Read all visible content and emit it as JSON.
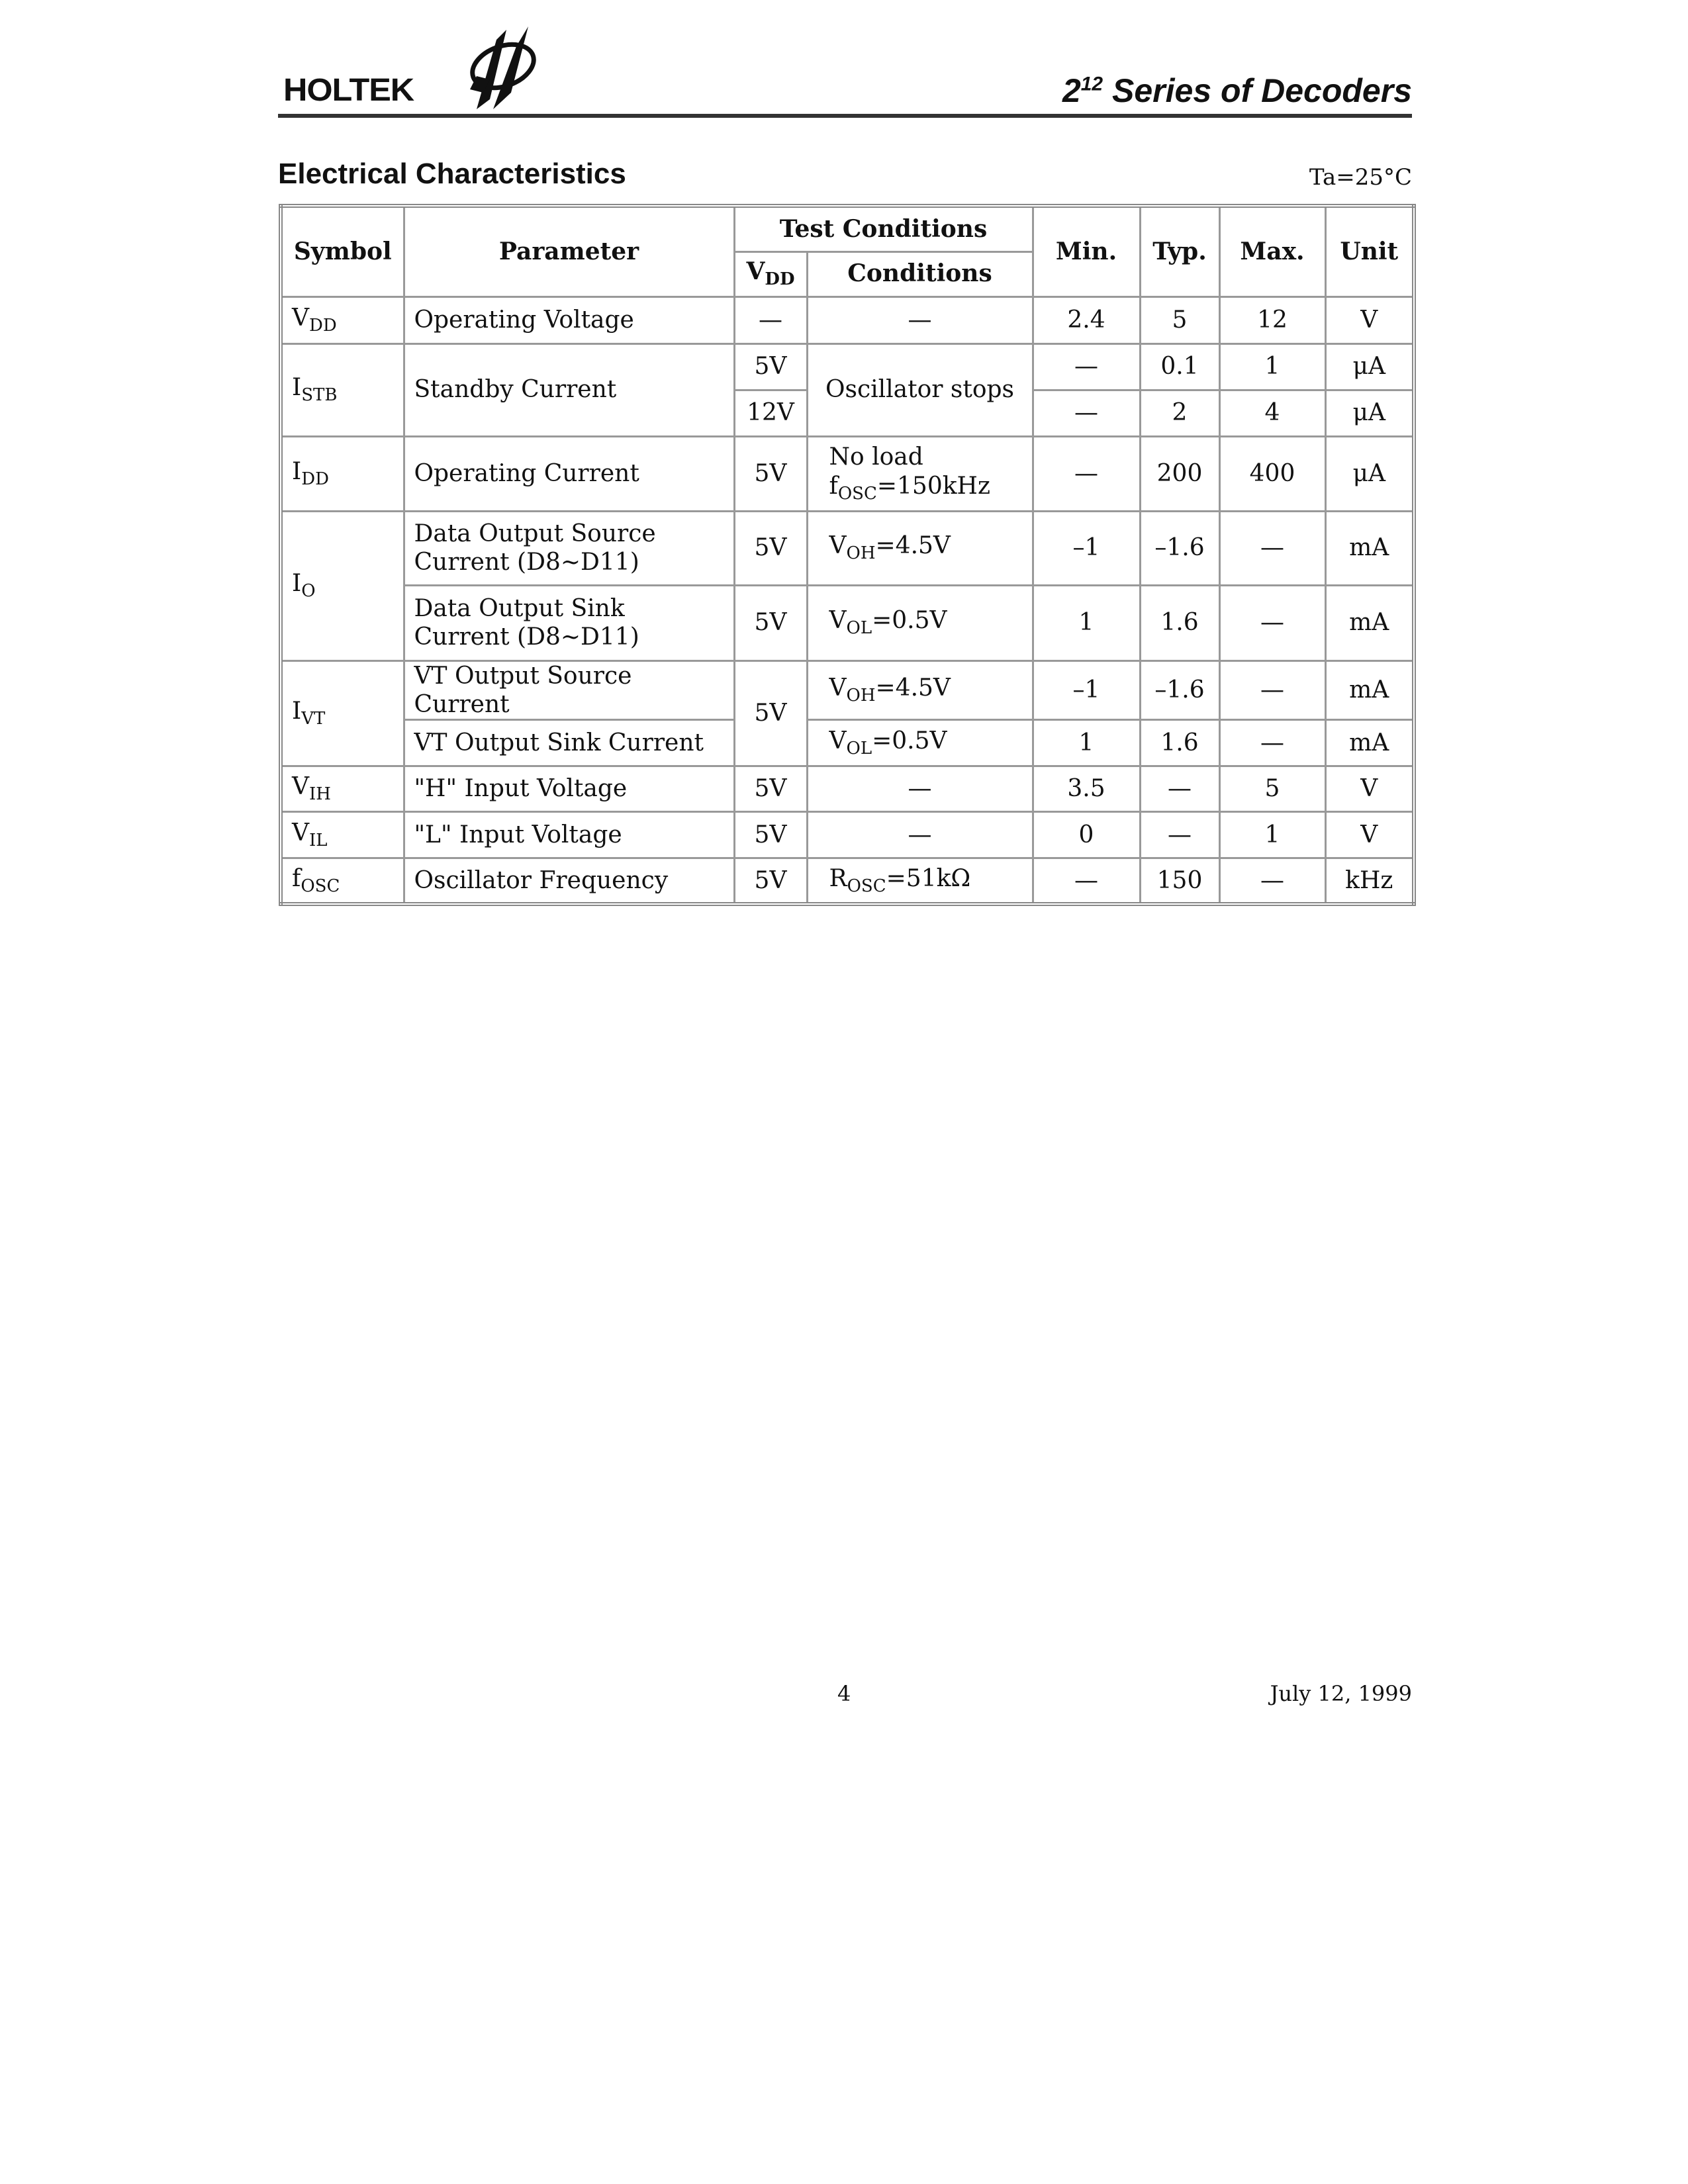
{
  "header": {
    "logo_text": "HOLTEK",
    "title_base": "2",
    "title_sup": "12",
    "title_rest": " Series of Decoders"
  },
  "section_title": "Electrical Characteristics",
  "ambient": "Ta=25°C",
  "table": {
    "headers": {
      "symbol": "Symbol",
      "parameter": "Parameter",
      "test_conditions": "Test Conditions",
      "vdd_base": "V",
      "vdd_sub": "DD",
      "conditions": "Conditions",
      "min": "Min.",
      "typ": "Typ.",
      "max": "Max.",
      "unit": "Unit"
    },
    "rows": [
      {
        "sym": "V",
        "sub": "DD",
        "param": "Operating Voltage",
        "vdd": "—",
        "cond": "—",
        "min": "2.4",
        "typ": "5",
        "max": "12",
        "unit": "V"
      },
      {
        "sym": "I",
        "sub": "STB",
        "param": "Standby Current",
        "vdd": "5V",
        "cond": "Oscillator stops",
        "min": "—",
        "typ": "0.1",
        "max": "1",
        "unit": "μA"
      },
      {
        "vdd": "12V",
        "min": "—",
        "typ": "2",
        "max": "4",
        "unit": "μA"
      },
      {
        "sym": "I",
        "sub": "DD",
        "param": "Operating Current",
        "vdd": "5V",
        "cond_line1": "No load",
        "cond_base": "f",
        "cond_sub": "OSC",
        "cond_rest": "=150kHz",
        "min": "—",
        "typ": "200",
        "max": "400",
        "unit": "μA"
      },
      {
        "sym": "I",
        "sub": "O",
        "param_line1": "Data Output Source",
        "param_line2": "Current (D8~D11)",
        "vdd": "5V",
        "cond_base": "V",
        "cond_sub": "OH",
        "cond_rest": "=4.5V",
        "min": "–1",
        "typ": "–1.6",
        "max": "—",
        "unit": "mA"
      },
      {
        "param_line1": "Data Output Sink",
        "param_line2": "Current (D8~D11)",
        "vdd": "5V",
        "cond_base": "V",
        "cond_sub": "OL",
        "cond_rest": "=0.5V",
        "min": "1",
        "typ": "1.6",
        "max": "—",
        "unit": "mA"
      },
      {
        "sym": "I",
        "sub": "VT",
        "param": "VT Output Source Current",
        "vdd": "5V",
        "cond_base": "V",
        "cond_sub": "OH",
        "cond_rest": "=4.5V",
        "min": "–1",
        "typ": "–1.6",
        "max": "—",
        "unit": "mA"
      },
      {
        "param": "VT Output Sink Current",
        "cond_base": "V",
        "cond_sub": "OL",
        "cond_rest": "=0.5V",
        "min": "1",
        "typ": "1.6",
        "max": "—",
        "unit": "mA"
      },
      {
        "sym": "V",
        "sub": "IH",
        "param": "\"H\" Input Voltage",
        "vdd": "5V",
        "cond": "—",
        "min": "3.5",
        "typ": "—",
        "max": "5",
        "unit": "V"
      },
      {
        "sym": "V",
        "sub": "IL",
        "param": "\"L\" Input Voltage",
        "vdd": "5V",
        "cond": "—",
        "min": "0",
        "typ": "—",
        "max": "1",
        "unit": "V"
      },
      {
        "sym": "f",
        "sub": "OSC",
        "param": "Oscillator Frequency",
        "vdd": "5V",
        "cond_base": "R",
        "cond_sub": "OSC",
        "cond_rest": "=51kΩ",
        "min": "—",
        "typ": "150",
        "max": "—",
        "unit": "kHz"
      }
    ]
  },
  "footer": {
    "page": "4",
    "date": "July 12, 1999"
  }
}
